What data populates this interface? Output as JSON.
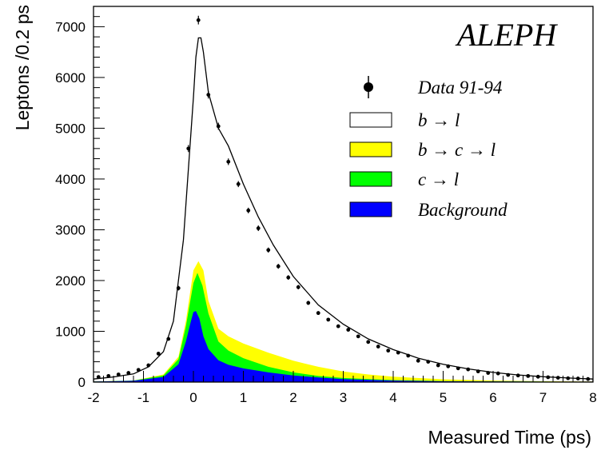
{
  "chart_data": {
    "type": "area",
    "title": "ALEPH",
    "xlabel": "Measured Time (ps)",
    "ylabel": "Leptons /0.2 ps",
    "xlim": [
      -2,
      8
    ],
    "ylim": [
      0,
      7400
    ],
    "xticks": [
      -2,
      -1,
      0,
      1,
      2,
      3,
      4,
      5,
      6,
      7,
      8
    ],
    "yticks": [
      0,
      1000,
      2000,
      3000,
      4000,
      5000,
      6000,
      7000
    ],
    "legend_position": "top-right",
    "legend": [
      {
        "label": "Data 91-94",
        "kind": "marker",
        "color": "#000000"
      },
      {
        "label": "b → l",
        "kind": "box",
        "color": "#ffffff"
      },
      {
        "label": "b → c → l",
        "kind": "box",
        "color": "#ffff00"
      },
      {
        "label": "c → l",
        "kind": "box",
        "color": "#00ff00"
      },
      {
        "label": "Background",
        "kind": "box",
        "color": "#0000ff"
      }
    ],
    "x": [
      -1.9,
      -1.7,
      -1.5,
      -1.3,
      -1.1,
      -0.9,
      -0.7,
      -0.5,
      -0.3,
      -0.1,
      0.1,
      0.3,
      0.5,
      0.7,
      0.9,
      1.1,
      1.3,
      1.5,
      1.7,
      1.9,
      2.1,
      2.3,
      2.5,
      2.7,
      2.9,
      3.1,
      3.3,
      3.5,
      3.7,
      3.9,
      4.1,
      4.3,
      4.5,
      4.7,
      4.9,
      5.1,
      5.3,
      5.5,
      5.7,
      5.9,
      6.1,
      6.3,
      6.5,
      6.7,
      6.9,
      7.1,
      7.3,
      7.5,
      7.7,
      7.9
    ],
    "data_points": [
      100,
      120,
      150,
      180,
      240,
      330,
      560,
      850,
      1850,
      4600,
      7130,
      5660,
      5040,
      4340,
      3900,
      3380,
      3030,
      2600,
      2280,
      2060,
      1870,
      1560,
      1360,
      1230,
      1100,
      1030,
      900,
      790,
      700,
      620,
      580,
      520,
      420,
      400,
      330,
      310,
      270,
      250,
      210,
      180,
      170,
      140,
      130,
      120,
      105,
      95,
      85,
      75,
      70,
      60
    ],
    "data_errors": [
      15,
      15,
      15,
      15,
      18,
      20,
      25,
      30,
      45,
      70,
      85,
      75,
      70,
      65,
      60,
      55,
      55,
      50,
      48,
      45,
      43,
      40,
      37,
      35,
      33,
      32,
      30,
      28,
      26,
      25,
      24,
      23,
      20,
      20,
      18,
      18,
      16,
      16,
      15,
      13,
      13,
      12,
      11,
      11,
      10,
      10,
      9,
      9,
      8,
      8
    ],
    "series": [
      {
        "name": "b → l",
        "color": "#ffffff",
        "x": [
          -2.0,
          -1.6,
          -1.2,
          -0.9,
          -0.6,
          -0.4,
          -0.2,
          0.0,
          0.05,
          0.1,
          0.15,
          0.2,
          0.3,
          0.5,
          0.7,
          1.0,
          1.3,
          1.6,
          2.0,
          2.5,
          3.0,
          3.5,
          4.0,
          4.5,
          5.0,
          5.5,
          6.0,
          6.5,
          7.0,
          7.5,
          8.0
        ],
        "values": [
          60,
          100,
          160,
          300,
          600,
          1200,
          2800,
          5600,
          6400,
          6780,
          6780,
          6500,
          5700,
          5000,
          4650,
          3900,
          3250,
          2700,
          2080,
          1520,
          1140,
          850,
          640,
          470,
          350,
          260,
          190,
          140,
          105,
          80,
          60
        ]
      },
      {
        "name": "b → c → l",
        "color": "#ffff00",
        "x": [
          -2.0,
          -1.2,
          -0.6,
          -0.3,
          -0.15,
          0.0,
          0.1,
          0.2,
          0.3,
          0.5,
          0.7,
          1.0,
          1.5,
          2.0,
          2.5,
          3.0,
          3.5,
          4.0,
          5.0,
          6.0,
          7.0,
          8.0
        ],
        "values": [
          10,
          30,
          150,
          500,
          1200,
          2200,
          2380,
          2200,
          1600,
          1050,
          900,
          760,
          580,
          420,
          300,
          210,
          150,
          105,
          55,
          30,
          15,
          10
        ]
      },
      {
        "name": "c → l",
        "color": "#00ff00",
        "x": [
          -2.0,
          -1.2,
          -0.6,
          -0.3,
          -0.15,
          0.0,
          0.08,
          0.18,
          0.3,
          0.5,
          0.7,
          1.0,
          1.5,
          2.0,
          2.5,
          3.0,
          4.0,
          5.0,
          8.0
        ],
        "values": [
          10,
          30,
          130,
          450,
          1100,
          1950,
          2150,
          1900,
          1350,
          800,
          620,
          470,
          300,
          190,
          120,
          80,
          40,
          20,
          5
        ]
      },
      {
        "name": "Background",
        "color": "#0000ff",
        "x": [
          -2.0,
          -1.2,
          -0.6,
          -0.3,
          -0.15,
          -0.05,
          0.0,
          0.05,
          0.12,
          0.2,
          0.3,
          0.5,
          0.7,
          1.0,
          1.5,
          2.0,
          2.5,
          3.0,
          4.0,
          5.0,
          8.0
        ],
        "values": [
          10,
          25,
          100,
          350,
          800,
          1200,
          1380,
          1400,
          1250,
          900,
          650,
          430,
          340,
          270,
          190,
          130,
          90,
          60,
          30,
          15,
          5
        ]
      }
    ]
  }
}
